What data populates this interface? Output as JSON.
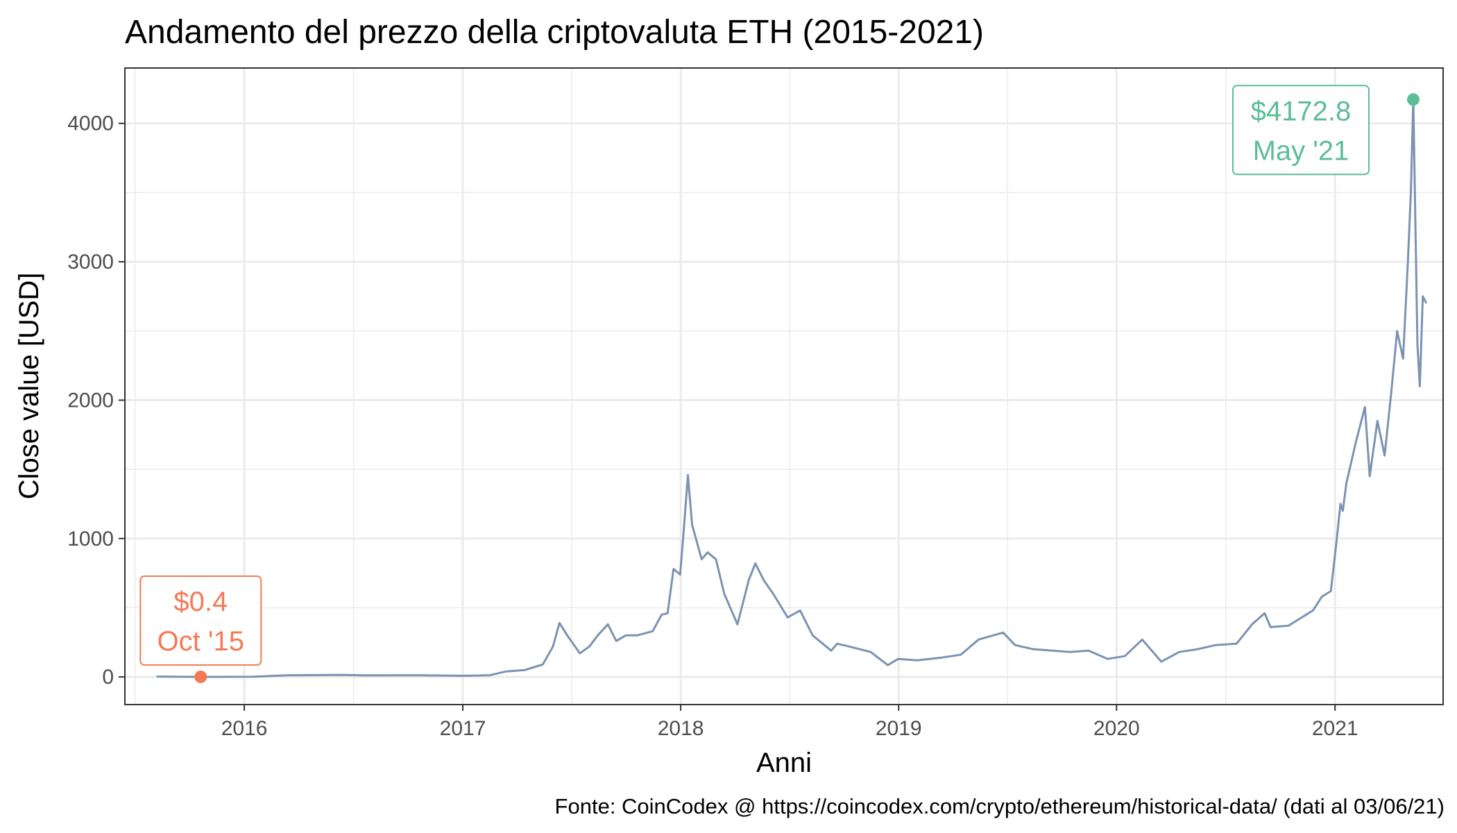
{
  "chart_data": {
    "type": "line",
    "title": "Andamento del prezzo della criptovaluta ETH (2015-2021)",
    "xlabel": "Anni",
    "ylabel": "Close value [USD]",
    "caption": "Fonte: CoinCodex @ https://coincodex.com/crypto/ethereum/historical-data/ (dati al 03/06/21)",
    "xlim": [
      "2015-06-15",
      "2021-07-01"
    ],
    "ylim": [
      -200,
      4400
    ],
    "grid": true,
    "x_ticks": [
      {
        "date": "2016-01-01",
        "label": "2016"
      },
      {
        "date": "2017-01-01",
        "label": "2017"
      },
      {
        "date": "2018-01-01",
        "label": "2018"
      },
      {
        "date": "2019-01-01",
        "label": "2019"
      },
      {
        "date": "2020-01-01",
        "label": "2020"
      },
      {
        "date": "2021-01-01",
        "label": "2021"
      }
    ],
    "y_ticks": [
      {
        "value": 0,
        "label": "0"
      },
      {
        "value": 1000,
        "label": "1000"
      },
      {
        "value": 2000,
        "label": "2000"
      },
      {
        "value": 3000,
        "label": "3000"
      },
      {
        "value": 4000,
        "label": "4000"
      }
    ],
    "colors": {
      "line": "#7a93b1",
      "min": "#f47a55",
      "max": "#5cbd96"
    },
    "series": [
      {
        "x": [
          "2015-08-07",
          "2015-10-20",
          "2016-01-15",
          "2016-03-15",
          "2016-06-15",
          "2016-07-20",
          "2016-10-15",
          "2017-01-01",
          "2017-02-15",
          "2017-03-15",
          "2017-04-15",
          "2017-05-15",
          "2017-06-01",
          "2017-06-12",
          "2017-06-25",
          "2017-07-16",
          "2017-08-01",
          "2017-08-15",
          "2017-09-01",
          "2017-09-15",
          "2017-10-01",
          "2017-10-20",
          "2017-11-15",
          "2017-11-30",
          "2017-12-10",
          "2017-12-20",
          "2017-12-31",
          "2018-01-05",
          "2018-01-13",
          "2018-01-20",
          "2018-02-05",
          "2018-02-15",
          "2018-03-01",
          "2018-03-15",
          "2018-04-06",
          "2018-04-25",
          "2018-05-06",
          "2018-05-20",
          "2018-06-05",
          "2018-06-29",
          "2018-07-20",
          "2018-08-10",
          "2018-09-10",
          "2018-09-20",
          "2018-10-10",
          "2018-11-15",
          "2018-12-14",
          "2018-12-31",
          "2019-02-01",
          "2019-03-15",
          "2019-04-15",
          "2019-05-15",
          "2019-06-25",
          "2019-07-15",
          "2019-08-15",
          "2019-09-15",
          "2019-10-15",
          "2019-11-15",
          "2019-12-17",
          "2020-01-15",
          "2020-02-13",
          "2020-03-12",
          "2020-03-16",
          "2020-04-15",
          "2020-05-15",
          "2020-06-15",
          "2020-07-20",
          "2020-08-15",
          "2020-09-05",
          "2020-09-15",
          "2020-10-15",
          "2020-11-25",
          "2020-12-10",
          "2020-12-25",
          "2021-01-04",
          "2021-01-10",
          "2021-01-14",
          "2021-01-20",
          "2021-02-05",
          "2021-02-20",
          "2021-02-28",
          "2021-03-13",
          "2021-03-25",
          "2021-04-05",
          "2021-04-15",
          "2021-04-25",
          "2021-05-03",
          "2021-05-08",
          "2021-05-12",
          "2021-05-19",
          "2021-05-23",
          "2021-05-28",
          "2021-06-03"
        ],
        "y": [
          2.8,
          0.4,
          1,
          12,
          14,
          11,
          12,
          8,
          12,
          40,
          50,
          90,
          220,
          390,
          300,
          170,
          220,
          300,
          380,
          260,
          300,
          300,
          330,
          450,
          460,
          780,
          740,
          1000,
          1460,
          1100,
          850,
          900,
          850,
          600,
          380,
          700,
          820,
          700,
          600,
          430,
          480,
          300,
          190,
          240,
          220,
          180,
          85,
          130,
          120,
          140,
          160,
          270,
          320,
          230,
          200,
          190,
          180,
          190,
          130,
          150,
          270,
          130,
          110,
          180,
          200,
          230,
          240,
          380,
          460,
          360,
          370,
          480,
          580,
          620,
          1000,
          1250,
          1200,
          1400,
          1700,
          1950,
          1450,
          1850,
          1600,
          2050,
          2500,
          2300,
          3000,
          3500,
          4172.8,
          2400,
          2100,
          2750,
          2700
        ]
      }
    ],
    "annotations": [
      {
        "kind": "min",
        "date": "2015-10-20",
        "value": 0.4,
        "price_label": "$0.4",
        "date_label": "Oct '15"
      },
      {
        "kind": "max",
        "date": "2021-05-12",
        "value": 4172.8,
        "price_label": "$4172.8",
        "date_label": "May '21"
      }
    ]
  }
}
